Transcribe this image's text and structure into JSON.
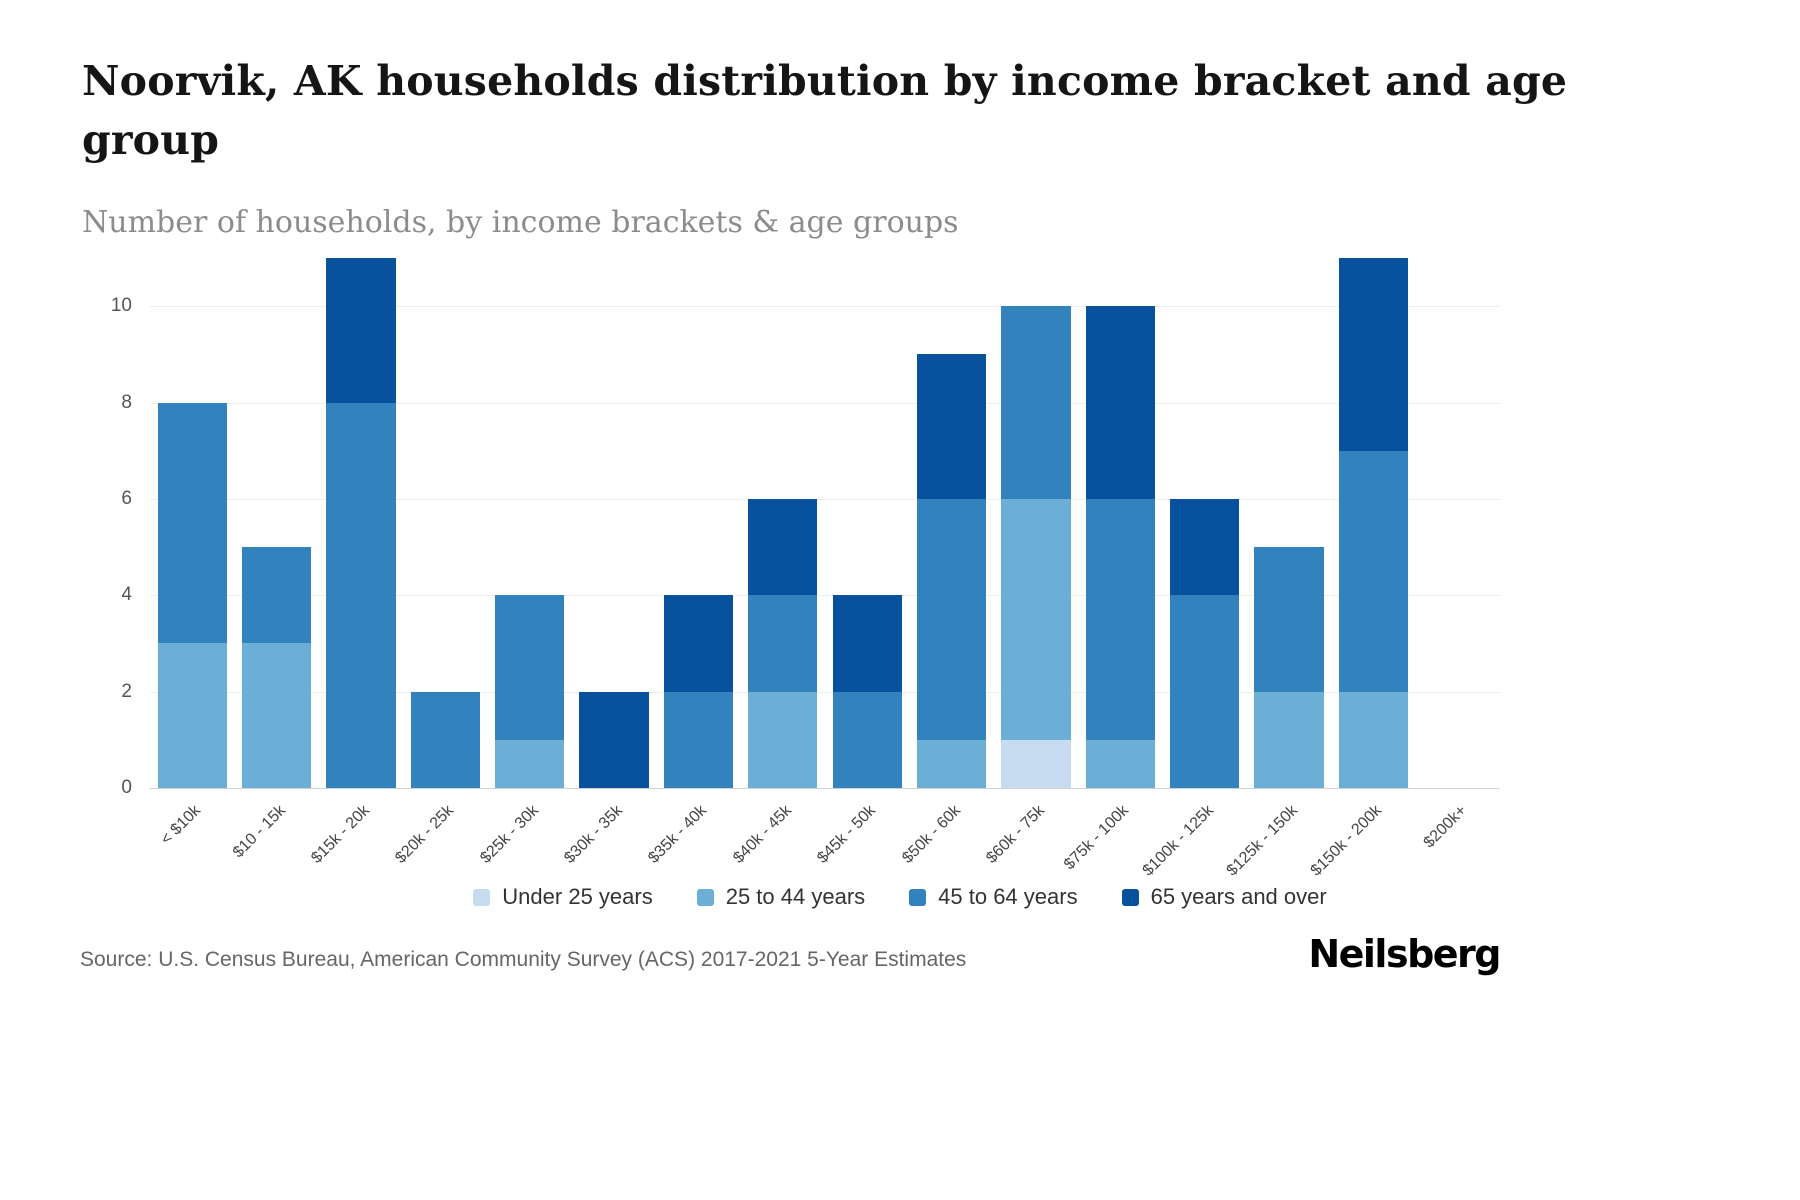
{
  "header": {
    "title": "Noorvik, AK households distribution by income bracket and age group",
    "subtitle": "Number of households, by income brackets & age groups"
  },
  "chart_data": {
    "type": "bar",
    "stacked": true,
    "title": "Noorvik, AK households distribution by income bracket and age group",
    "subtitle": "Number of households, by income brackets & age groups",
    "xlabel": "",
    "ylabel": "",
    "ylim": [
      0,
      11
    ],
    "yticks": [
      0,
      2,
      4,
      6,
      8,
      10
    ],
    "grid": true,
    "legend_position": "bottom",
    "categories": [
      "< $10k",
      "$10 - 15k",
      "$15k - 20k",
      "$20k - 25k",
      "$25k - 30k",
      "$30k - 35k",
      "$35k - 40k",
      "$40k - 45k",
      "$45k - 50k",
      "$50k - 60k",
      "$60k - 75k",
      "$75k - 100k",
      "$100k - 125k",
      "$125k - 150k",
      "$150k - 200k",
      "$200k+"
    ],
    "series": [
      {
        "name": "Under 25 years",
        "color": "#c6dbef",
        "values": [
          0,
          0,
          0,
          0,
          0,
          0,
          0,
          0,
          0,
          0,
          1,
          0,
          0,
          0,
          0,
          0
        ]
      },
      {
        "name": "25 to 44 years",
        "color": "#6baed6",
        "values": [
          3,
          3,
          0,
          0,
          1,
          0,
          0,
          2,
          0,
          1,
          5,
          1,
          0,
          2,
          2,
          0
        ]
      },
      {
        "name": "45 to 64 years",
        "color": "#3182bd",
        "values": [
          5,
          2,
          8,
          2,
          3,
          0,
          2,
          2,
          2,
          5,
          4,
          5,
          4,
          3,
          5,
          0
        ]
      },
      {
        "name": "65 years and over",
        "color": "#08519c",
        "values": [
          0,
          0,
          3,
          0,
          0,
          2,
          2,
          2,
          2,
          3,
          0,
          4,
          2,
          0,
          4,
          0
        ]
      }
    ],
    "totals": [
      8,
      5,
      11,
      2,
      4,
      2,
      4,
      6,
      4,
      9,
      10,
      10,
      6,
      5,
      11,
      0
    ]
  },
  "footer": {
    "source": "Source: U.S. Census Bureau, American Community Survey (ACS) 2017-2021 5-Year Estimates",
    "brand": "Neilsberg"
  }
}
